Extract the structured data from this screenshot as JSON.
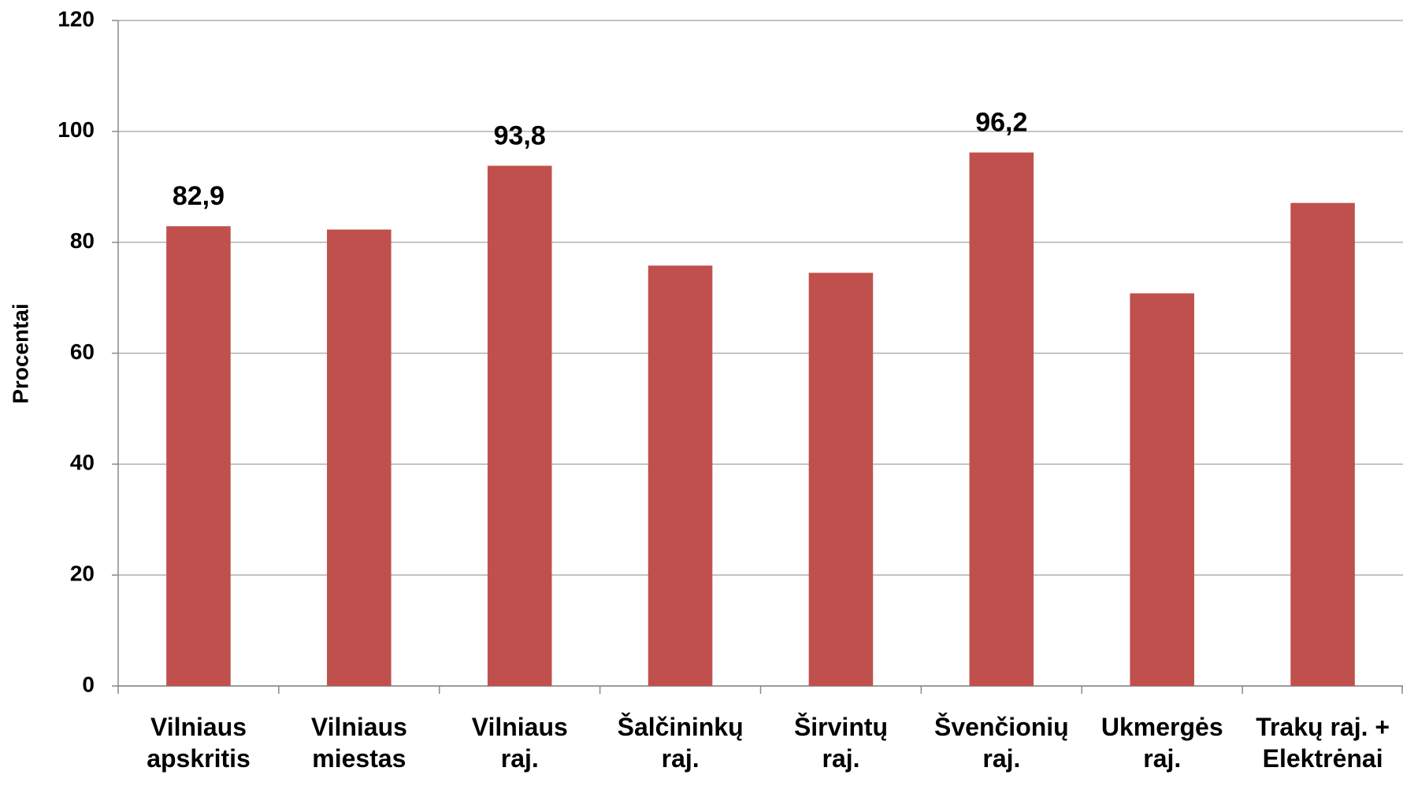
{
  "chart_data": {
    "type": "bar",
    "ylabel": "Procentai",
    "categories": [
      "Vilniaus\napskritis",
      "Vilniaus\nmiestas",
      "Vilniaus\nraj.",
      "Šalčininkų\nraj.",
      "Širvintų\nraj.",
      "Švenčionių\nraj.",
      "Ukmergės\nraj.",
      "Trakų raj. +\nElektrėnai"
    ],
    "values": [
      82.9,
      82.3,
      93.8,
      75.8,
      74.5,
      96.2,
      70.8,
      87.1
    ],
    "value_labels": [
      "82,9",
      null,
      "93,8",
      null,
      null,
      "96,2",
      null,
      null
    ],
    "color": "#c0504d",
    "ylim": [
      0,
      120
    ],
    "yticks": [
      0,
      20,
      40,
      60,
      80,
      100,
      120
    ],
    "grid": true
  }
}
